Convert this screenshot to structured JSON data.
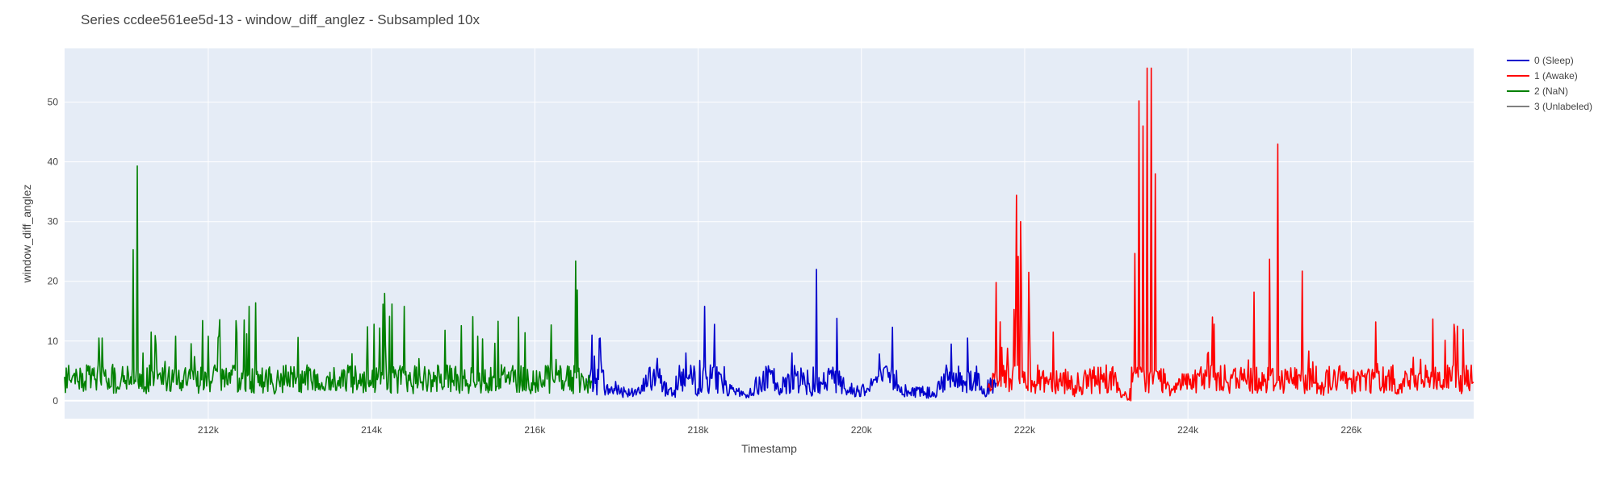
{
  "chart_data": {
    "type": "line",
    "title": "Series ccdee561ee5d-13 - window_diff_anglez - Subsampled 10x",
    "xlabel": "Timestamp",
    "ylabel": "window_diff_anglez",
    "xlim": [
      210240,
      227500
    ],
    "ylim": [
      -3,
      59
    ],
    "x_ticks": [
      212000,
      214000,
      216000,
      218000,
      220000,
      222000,
      224000,
      226000
    ],
    "x_tick_labels": [
      "212k",
      "214k",
      "216k",
      "218k",
      "220k",
      "222k",
      "224k",
      "226k"
    ],
    "y_ticks": [
      0,
      10,
      20,
      30,
      40,
      50
    ],
    "y_tick_labels": [
      "0",
      "10",
      "20",
      "30",
      "40",
      "50"
    ],
    "grid": true,
    "legend_position": "top-right, outside plot",
    "background": "#e5ecf6",
    "series": [
      {
        "name": "0 (Sleep)",
        "color": "#0000cc",
        "x_range": [
          216650,
          221650
        ],
        "keypoints": [
          [
            216650,
            3
          ],
          [
            216700,
            11
          ],
          [
            216760,
            1
          ],
          [
            216800,
            10.5
          ],
          [
            216850,
            2
          ],
          [
            217000,
            2
          ],
          [
            217300,
            1.5
          ],
          [
            217400,
            5.5
          ],
          [
            217700,
            1
          ],
          [
            217850,
            8
          ],
          [
            218000,
            2
          ],
          [
            218080,
            15.8
          ],
          [
            218150,
            6
          ],
          [
            218200,
            12.8
          ],
          [
            218350,
            2
          ],
          [
            218600,
            1
          ],
          [
            218900,
            5
          ],
          [
            219000,
            1
          ],
          [
            219150,
            8
          ],
          [
            219400,
            1
          ],
          [
            219450,
            22
          ],
          [
            219550,
            2
          ],
          [
            219700,
            13.8
          ],
          [
            219800,
            2
          ],
          [
            220000,
            2
          ],
          [
            220200,
            4
          ],
          [
            220380,
            12.3
          ],
          [
            220500,
            1
          ],
          [
            220700,
            2
          ],
          [
            220900,
            1
          ],
          [
            221100,
            9.5
          ],
          [
            221300,
            10.5
          ],
          [
            221500,
            2
          ],
          [
            221650,
            3
          ]
        ]
      },
      {
        "name": "1 (Awake)",
        "color": "#ff0000",
        "x_range": [
          221550,
          227500
        ],
        "keypoints": [
          [
            221600,
            2
          ],
          [
            221650,
            19.8
          ],
          [
            221750,
            3
          ],
          [
            221900,
            34.4
          ],
          [
            221950,
            30
          ],
          [
            222050,
            21.5
          ],
          [
            222200,
            4
          ],
          [
            222350,
            11.5
          ],
          [
            222600,
            2
          ],
          [
            223000,
            6
          ],
          [
            223200,
            1
          ],
          [
            223300,
            0
          ],
          [
            223400,
            50.2
          ],
          [
            223450,
            46
          ],
          [
            223500,
            55.7
          ],
          [
            223550,
            55.7
          ],
          [
            223600,
            38
          ],
          [
            223650,
            5
          ],
          [
            223800,
            2
          ],
          [
            224300,
            14
          ],
          [
            224500,
            2
          ],
          [
            225000,
            23.7
          ],
          [
            225100,
            43
          ],
          [
            225200,
            5
          ],
          [
            225400,
            21.7
          ],
          [
            225600,
            2
          ],
          [
            226300,
            13.2
          ],
          [
            226600,
            2
          ],
          [
            227000,
            13.7
          ],
          [
            227300,
            12.5
          ],
          [
            227500,
            3
          ]
        ]
      },
      {
        "name": "2 (NaN)",
        "color": "#008000",
        "x_range": [
          210240,
          216700
        ],
        "keypoints": [
          [
            210240,
            4
          ],
          [
            210700,
            10.5
          ],
          [
            210900,
            2
          ],
          [
            211080,
            25.3
          ],
          [
            211130,
            39.3
          ],
          [
            211200,
            8
          ],
          [
            211300,
            11.5
          ],
          [
            211600,
            10.8
          ],
          [
            212000,
            10.8
          ],
          [
            212350,
            11.4
          ],
          [
            212500,
            15.8
          ],
          [
            212580,
            16.4
          ],
          [
            212800,
            2
          ],
          [
            213100,
            10.6
          ],
          [
            213400,
            2
          ],
          [
            213950,
            12.4
          ],
          [
            214250,
            16.2
          ],
          [
            214400,
            15.8
          ],
          [
            214600,
            3
          ],
          [
            214900,
            11.8
          ],
          [
            215300,
            10.8
          ],
          [
            215550,
            13.3
          ],
          [
            215800,
            14
          ],
          [
            216000,
            3
          ],
          [
            216200,
            12.7
          ],
          [
            216500,
            23.4
          ],
          [
            216600,
            3
          ],
          [
            216700,
            3
          ]
        ]
      },
      {
        "name": "3 (Unlabeled)",
        "color": "#808080",
        "x_range": null,
        "keypoints": []
      }
    ]
  }
}
